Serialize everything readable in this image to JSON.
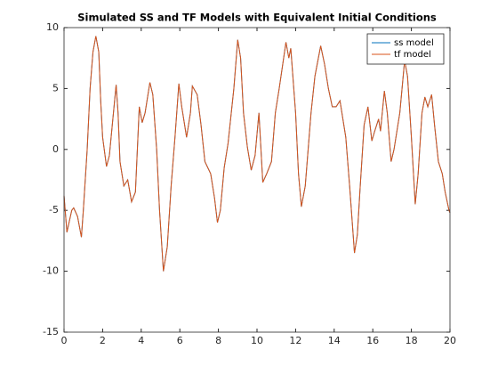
{
  "chart_data": {
    "type": "line",
    "title": "Simulated SS and TF Models with Equivalent Initial Conditions",
    "x": [
      0,
      0.15,
      0.4,
      0.5,
      0.7,
      0.9,
      1.0,
      1.2,
      1.35,
      1.5,
      1.65,
      1.8,
      1.9,
      2.0,
      2.2,
      2.35,
      2.5,
      2.7,
      2.8,
      2.9,
      3.1,
      3.3,
      3.5,
      3.7,
      3.9,
      4.05,
      4.2,
      4.45,
      4.6,
      4.8,
      4.95,
      5.15,
      5.35,
      5.55,
      5.75,
      5.95,
      6.1,
      6.35,
      6.55,
      6.65,
      6.9,
      7.1,
      7.3,
      7.6,
      7.8,
      7.95,
      8.1,
      8.3,
      8.5,
      8.8,
      9.0,
      9.15,
      9.3,
      9.5,
      9.7,
      9.9,
      10.1,
      10.3,
      10.5,
      10.75,
      10.95,
      11.15,
      11.5,
      11.65,
      11.75,
      12.0,
      12.15,
      12.3,
      12.5,
      12.8,
      13.0,
      13.3,
      13.5,
      13.7,
      13.9,
      14.1,
      14.3,
      14.6,
      14.8,
      15.05,
      15.2,
      15.35,
      15.55,
      15.75,
      15.95,
      16.1,
      16.3,
      16.4,
      16.6,
      16.75,
      16.95,
      17.1,
      17.4,
      17.65,
      17.8,
      18.0,
      18.2,
      18.35,
      18.55,
      18.7,
      18.85,
      19.05,
      19.2,
      19.4,
      19.6,
      19.75,
      19.95,
      20
    ],
    "series": [
      {
        "name": "ss model",
        "color": "#0072bd",
        "values": [
          -3.8,
          -6.8,
          -5,
          -4.8,
          -5.5,
          -7.2,
          -5,
          0,
          5,
          8,
          9.3,
          8,
          4,
          1,
          -1.4,
          -0.5,
          2,
          5.3,
          3,
          -1,
          -3,
          -2.5,
          -4.3,
          -3.5,
          3.5,
          2.2,
          3,
          5.5,
          4.5,
          0,
          -5,
          -10,
          -8,
          -3,
          1,
          5.4,
          3.5,
          1,
          3,
          5.2,
          4.5,
          2,
          -1,
          -2,
          -4,
          -6,
          -5,
          -1.5,
          0.5,
          5,
          9,
          7.5,
          3,
          0.2,
          -1.7,
          -0.5,
          3,
          -2.7,
          -2,
          -1,
          3,
          5,
          8.8,
          7.5,
          8.3,
          3,
          -2,
          -4.7,
          -3,
          3,
          6,
          8.5,
          7,
          5,
          3.5,
          3.5,
          4,
          1,
          -3,
          -8.5,
          -7,
          -3,
          2,
          3.5,
          0.7,
          1.5,
          2.5,
          1.5,
          4.8,
          3,
          -1,
          0,
          3,
          7.3,
          6,
          1,
          -4.5,
          -2,
          3,
          4.3,
          3.5,
          4.5,
          2,
          -1,
          -2,
          -3.5,
          -5,
          -5.2
        ]
      },
      {
        "name": "tf model",
        "color": "#d95319",
        "values": [
          -3.8,
          -6.8,
          -5,
          -4.8,
          -5.5,
          -7.2,
          -5,
          0,
          5,
          8,
          9.3,
          8,
          4,
          1,
          -1.4,
          -0.5,
          2,
          5.3,
          3,
          -1,
          -3,
          -2.5,
          -4.3,
          -3.5,
          3.5,
          2.2,
          3,
          5.5,
          4.5,
          0,
          -5,
          -10,
          -8,
          -3,
          1,
          5.4,
          3.5,
          1,
          3,
          5.2,
          4.5,
          2,
          -1,
          -2,
          -4,
          -6,
          -5,
          -1.5,
          0.5,
          5,
          9,
          7.5,
          3,
          0.2,
          -1.7,
          -0.5,
          3,
          -2.7,
          -2,
          -1,
          3,
          5,
          8.8,
          7.5,
          8.3,
          3,
          -2,
          -4.7,
          -3,
          3,
          6,
          8.5,
          7,
          5,
          3.5,
          3.5,
          4,
          1,
          -3,
          -8.5,
          -7,
          -3,
          2,
          3.5,
          0.7,
          1.5,
          2.5,
          1.5,
          4.8,
          3,
          -1,
          0,
          3,
          7.3,
          6,
          1,
          -4.5,
          -2,
          3,
          4.3,
          3.5,
          4.5,
          2,
          -1,
          -2,
          -3.5,
          -5,
          -5.2
        ]
      }
    ],
    "xlim": [
      0,
      20
    ],
    "xticks": [
      0,
      2,
      4,
      6,
      8,
      10,
      12,
      14,
      16,
      18,
      20
    ],
    "ylim": [
      -15,
      10
    ],
    "yticks": [
      -15,
      -10,
      -5,
      0,
      5,
      10
    ],
    "legend": "northeast",
    "grid": false
  }
}
